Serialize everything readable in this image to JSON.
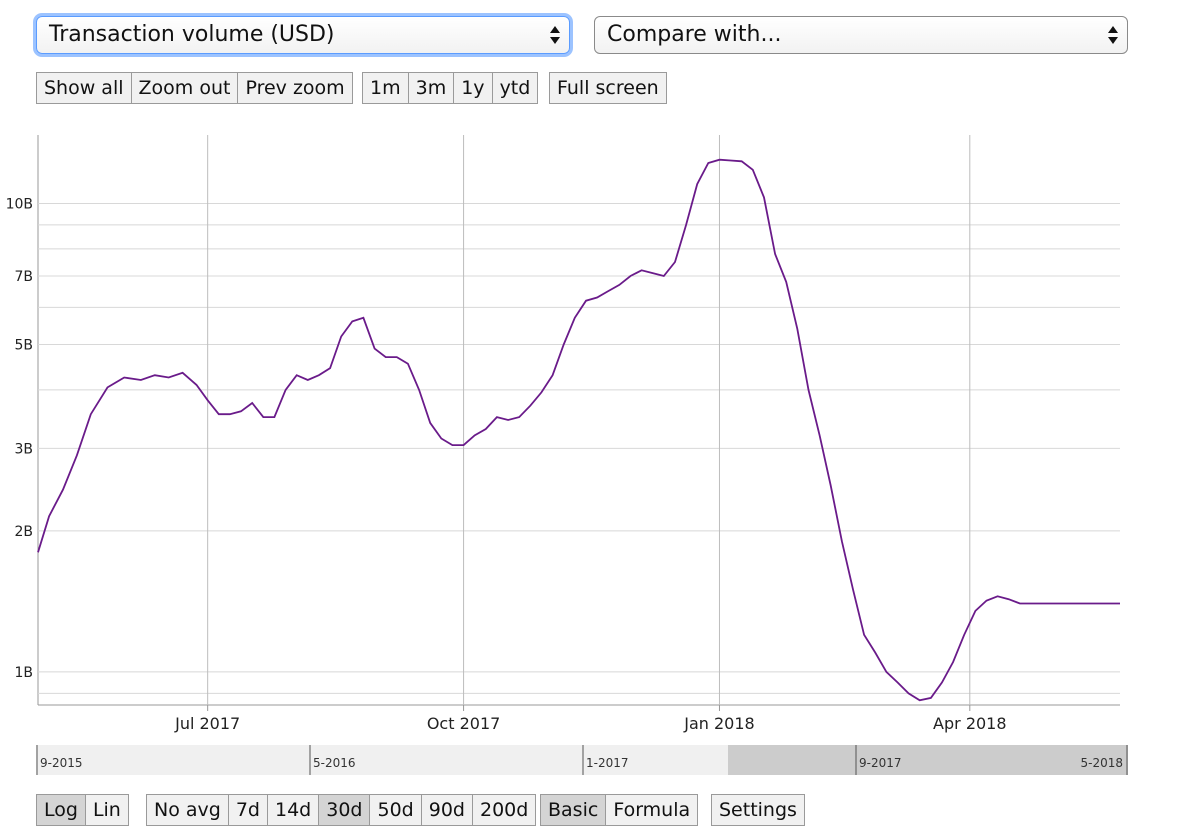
{
  "metric_select": {
    "value": "Transaction volume (USD)"
  },
  "compare_select": {
    "value": "Compare with..."
  },
  "zoom_buttons": [
    "Show all",
    "Zoom out",
    "Prev zoom"
  ],
  "range_buttons": [
    "1m",
    "3m",
    "1y",
    "ytd"
  ],
  "fullscreen_button": "Full screen",
  "scale_buttons": {
    "items": [
      "Log",
      "Lin"
    ],
    "active": "Log"
  },
  "avg_buttons": {
    "items": [
      "No avg",
      "7d",
      "14d",
      "30d",
      "50d",
      "90d",
      "200d"
    ],
    "active": "30d"
  },
  "mode_buttons": {
    "items": [
      "Basic",
      "Formula"
    ],
    "active": "Basic"
  },
  "settings_button": "Settings",
  "colors": {
    "line": "#6a1b8a",
    "grid": "#d8d8d8",
    "navigator_selected": "#cccccc",
    "navigator_bg": "#f0f0f0"
  },
  "chart_data": {
    "type": "line",
    "title": "",
    "xlabel": "",
    "ylabel": "",
    "yscale": "log",
    "xlim": [
      "2017-05-01",
      "2018-05-25"
    ],
    "ylim": [
      850000000,
      14000000000
    ],
    "y_tick_labels": [
      {
        "value": 1000000000,
        "label": "1B"
      },
      {
        "value": 2000000000,
        "label": "2B"
      },
      {
        "value": 3000000000,
        "label": "3B"
      },
      {
        "value": 5000000000,
        "label": "5B"
      },
      {
        "value": 7000000000,
        "label": "7B"
      },
      {
        "value": 10000000000,
        "label": "10B"
      }
    ],
    "y_minor_gridlines": [
      900000000,
      4000000000,
      6000000000,
      8000000000,
      9000000000
    ],
    "x_ticks": [
      {
        "date": "2017-07-01",
        "label": "Jul 2017"
      },
      {
        "date": "2017-10-01",
        "label": "Oct 2017"
      },
      {
        "date": "2018-01-01",
        "label": "Jan 2018"
      },
      {
        "date": "2018-04-01",
        "label": "Apr 2018"
      }
    ],
    "grid": true,
    "series": [
      {
        "x": [
          "2017-05-01",
          "2017-05-05",
          "2017-05-10",
          "2017-05-15",
          "2017-05-20",
          "2017-05-26",
          "2017-06-01",
          "2017-06-07",
          "2017-06-12",
          "2017-06-17",
          "2017-06-22",
          "2017-06-27",
          "2017-07-01",
          "2017-07-05",
          "2017-07-09",
          "2017-07-13",
          "2017-07-17",
          "2017-07-21",
          "2017-07-25",
          "2017-07-29",
          "2017-08-02",
          "2017-08-06",
          "2017-08-10",
          "2017-08-14",
          "2017-08-18",
          "2017-08-22",
          "2017-08-26",
          "2017-08-30",
          "2017-09-03",
          "2017-09-07",
          "2017-09-11",
          "2017-09-15",
          "2017-09-19",
          "2017-09-23",
          "2017-09-27",
          "2017-10-01",
          "2017-10-05",
          "2017-10-09",
          "2017-10-13",
          "2017-10-17",
          "2017-10-21",
          "2017-10-25",
          "2017-10-29",
          "2017-11-02",
          "2017-11-06",
          "2017-11-10",
          "2017-11-14",
          "2017-11-18",
          "2017-11-22",
          "2017-11-26",
          "2017-11-30",
          "2017-12-04",
          "2017-12-08",
          "2017-12-12",
          "2017-12-16",
          "2017-12-20",
          "2017-12-24",
          "2017-12-28",
          "2018-01-01",
          "2018-01-05",
          "2018-01-09",
          "2018-01-13",
          "2018-01-17",
          "2018-01-21",
          "2018-01-25",
          "2018-01-29",
          "2018-02-02",
          "2018-02-06",
          "2018-02-10",
          "2018-02-14",
          "2018-02-18",
          "2018-02-22",
          "2018-02-26",
          "2018-03-02",
          "2018-03-06",
          "2018-03-10",
          "2018-03-14",
          "2018-03-18",
          "2018-03-22",
          "2018-03-26",
          "2018-03-30",
          "2018-04-03",
          "2018-04-07",
          "2018-04-11",
          "2018-04-15",
          "2018-04-19",
          "2018-04-23",
          "2018-04-27",
          "2018-05-01",
          "2018-05-05",
          "2018-05-09",
          "2018-05-13",
          "2018-05-17",
          "2018-05-21",
          "2018-05-25"
        ],
        "y": [
          1800000000,
          2150000000,
          2450000000,
          2900000000,
          3550000000,
          4050000000,
          4250000000,
          4200000000,
          4300000000,
          4250000000,
          4350000000,
          4100000000,
          3800000000,
          3550000000,
          3550000000,
          3600000000,
          3750000000,
          3500000000,
          3500000000,
          4000000000,
          4300000000,
          4200000000,
          4300000000,
          4450000000,
          5200000000,
          5600000000,
          5700000000,
          4900000000,
          4700000000,
          4700000000,
          4550000000,
          4000000000,
          3400000000,
          3150000000,
          3050000000,
          3050000000,
          3200000000,
          3300000000,
          3500000000,
          3450000000,
          3500000000,
          3700000000,
          3950000000,
          4300000000,
          5000000000,
          5700000000,
          6200000000,
          6300000000,
          6500000000,
          6700000000,
          7000000000,
          7200000000,
          7100000000,
          7000000000,
          7500000000,
          9000000000,
          11000000000,
          12200000000,
          12400000000,
          12350000000,
          12300000000,
          11800000000,
          10300000000,
          7800000000,
          6800000000,
          5400000000,
          4000000000,
          3200000000,
          2500000000,
          1900000000,
          1500000000,
          1200000000,
          1100000000,
          1000000000,
          950000000,
          900000000,
          870000000,
          880000000,
          950000000,
          1050000000,
          1200000000,
          1350000000,
          1420000000,
          1450000000,
          1430000000,
          1400000000,
          1400000000,
          1400000000,
          1400000000,
          1400000000,
          1400000000,
          1400000000,
          1400000000,
          1400000000,
          1400000000
        ]
      }
    ]
  },
  "navigator": {
    "labels": [
      "9-2015",
      "5-2016",
      "1-2017",
      "9-2017",
      "5-2018"
    ],
    "selected_range": [
      "2017-05",
      "2018-05"
    ]
  }
}
